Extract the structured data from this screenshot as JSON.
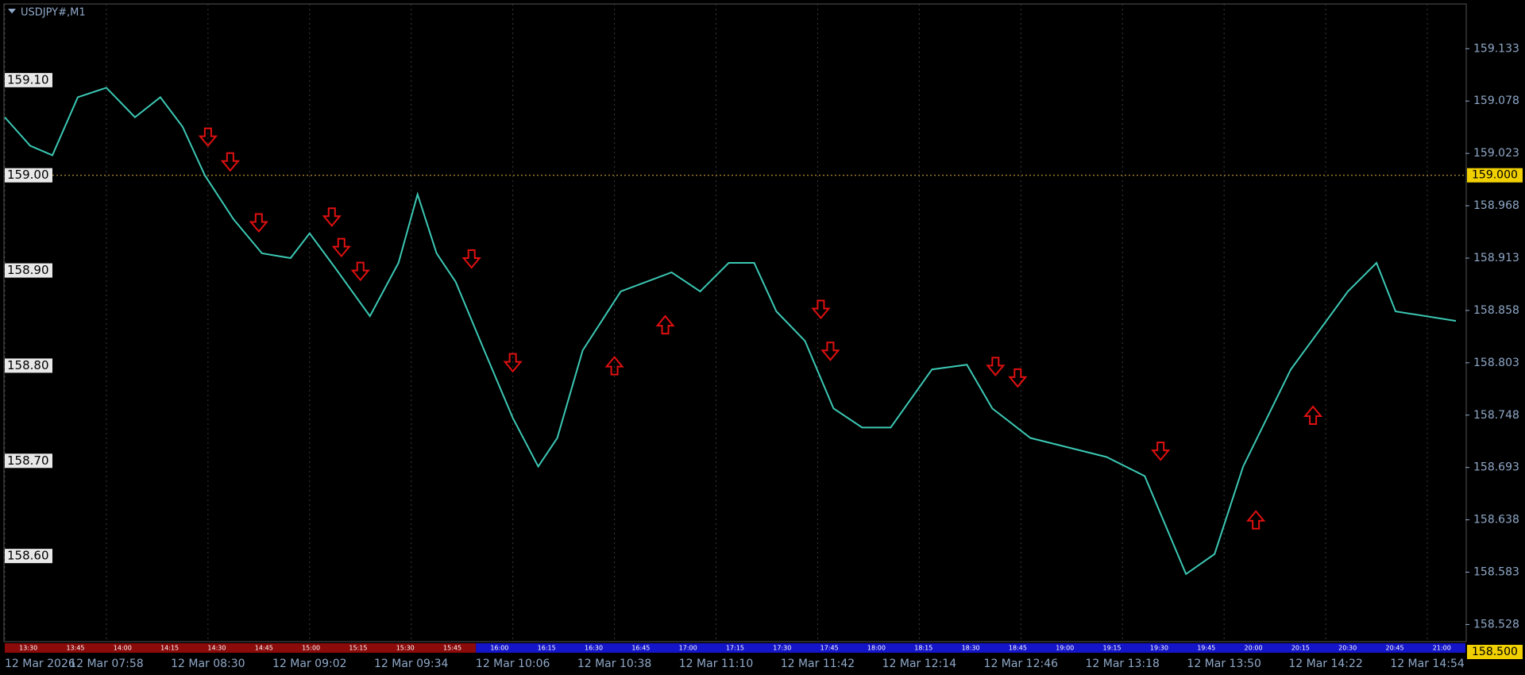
{
  "chart_data": {
    "type": "line",
    "title": "USDJPY#,M1",
    "series": [
      {
        "name": "USDJPY#",
        "color": "#3cc8b4",
        "x": [
          0,
          8,
          15,
          23,
          32,
          41,
          49,
          56,
          63,
          72,
          81,
          90,
          96,
          104,
          115,
          124,
          130,
          136,
          142,
          151,
          160,
          168,
          174,
          182,
          194,
          210,
          219,
          228,
          236,
          243,
          252,
          261,
          270,
          279,
          292,
          303,
          311,
          323,
          335,
          347,
          359,
          372,
          381,
          390,
          405,
          423,
          432,
          438,
          457
        ],
        "values": [
          159.061,
          159.031,
          159.021,
          159.082,
          159.092,
          159.061,
          159.082,
          159.051,
          159.0,
          158.954,
          158.918,
          158.913,
          158.939,
          158.903,
          158.852,
          158.908,
          158.98,
          158.918,
          158.888,
          158.816,
          158.745,
          158.694,
          158.724,
          158.816,
          158.878,
          158.898,
          158.878,
          158.908,
          158.908,
          158.857,
          158.826,
          158.755,
          158.735,
          158.735,
          158.796,
          158.801,
          158.755,
          158.724,
          158.714,
          158.704,
          158.684,
          158.581,
          158.602,
          158.694,
          158.796,
          158.878,
          158.908,
          158.857,
          158.847
        ]
      }
    ],
    "signals": {
      "down": {
        "color": "#e01010",
        "x": [
          64,
          71,
          80,
          103,
          106,
          112,
          147,
          160,
          257,
          260,
          312,
          319,
          364
        ],
        "values": [
          159.041,
          159.015,
          158.951,
          158.957,
          158.925,
          158.9,
          158.913,
          158.804,
          158.86,
          158.816,
          158.8,
          158.788,
          158.711
        ]
      },
      "up": {
        "color": "#e01010",
        "x": [
          192,
          208,
          394,
          412
        ],
        "values": [
          158.799,
          158.842,
          158.637,
          158.747
        ]
      }
    },
    "xlim": [
      0,
      460
    ],
    "ylim": [
      158.51,
      159.18
    ],
    "xticks": [
      {
        "value": 0,
        "label": "12 Mar 2026"
      },
      {
        "value": 32,
        "label": "12 Mar 07:58"
      },
      {
        "value": 64,
        "label": "12 Mar 08:30"
      },
      {
        "value": 96,
        "label": "12 Mar 09:02"
      },
      {
        "value": 128,
        "label": "12 Mar 09:34"
      },
      {
        "value": 160,
        "label": "12 Mar 10:06"
      },
      {
        "value": 192,
        "label": "12 Mar 10:38"
      },
      {
        "value": 224,
        "label": "12 Mar 11:10"
      },
      {
        "value": 256,
        "label": "12 Mar 11:42"
      },
      {
        "value": 288,
        "label": "12 Mar 12:14"
      },
      {
        "value": 320,
        "label": "12 Mar 12:46"
      },
      {
        "value": 352,
        "label": "12 Mar 13:18"
      },
      {
        "value": 384,
        "label": "12 Mar 13:50"
      },
      {
        "value": 416,
        "label": "12 Mar 14:22"
      },
      {
        "value": 448,
        "label": "12 Mar 14:54"
      }
    ],
    "yticks": [
      159.133,
      159.078,
      159.023,
      158.968,
      158.913,
      158.858,
      158.803,
      158.748,
      158.693,
      158.638,
      158.583,
      158.528
    ],
    "levels": [
      {
        "value": 159.1,
        "label": "159.10"
      },
      {
        "value": 159.0,
        "label": "159.00"
      },
      {
        "value": 158.9,
        "label": "158.90"
      },
      {
        "value": 158.8,
        "label": "158.80"
      },
      {
        "value": 158.7,
        "label": "158.70"
      },
      {
        "value": 158.6,
        "label": "158.60"
      }
    ],
    "price_line": {
      "value": 159.0,
      "label": "159.000"
    },
    "bid_label": {
      "value": 158.5,
      "label": "158.500"
    },
    "grid": true,
    "sessions": [
      {
        "color": "#8b0a0a",
        "labels": [
          "13:30",
          "13:45",
          "14:00",
          "14:15",
          "14:30",
          "14:45",
          "15:00",
          "15:15",
          "15:30",
          "15:45"
        ]
      },
      {
        "color": "#1414c8",
        "labels": [
          "16:00",
          "16:15",
          "16:30",
          "16:45",
          "17:00",
          "17:15",
          "17:30",
          "17:45",
          "18:00",
          "18:15",
          "18:30",
          "18:45",
          "19:00",
          "19:15",
          "19:30",
          "19:45",
          "20:00",
          "20:15",
          "20:30",
          "20:45",
          "21:00"
        ]
      }
    ]
  }
}
